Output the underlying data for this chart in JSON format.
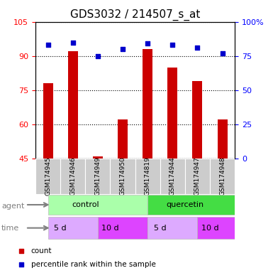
{
  "title": "GDS3032 / 214507_s_at",
  "samples": [
    "GSM174945",
    "GSM174946",
    "GSM174949",
    "GSM174950",
    "GSM174819",
    "GSM174944",
    "GSM174947",
    "GSM174948"
  ],
  "count_values": [
    78,
    92,
    46,
    62,
    93,
    85,
    79,
    62
  ],
  "percentile_values": [
    83,
    85,
    75,
    80,
    84,
    83,
    81,
    77
  ],
  "ylim_left": [
    45,
    105
  ],
  "ylim_right": [
    0,
    100
  ],
  "yticks_left": [
    45,
    60,
    75,
    90,
    105
  ],
  "yticks_right": [
    0,
    25,
    50,
    75,
    100
  ],
  "bar_color": "#cc0000",
  "dot_color": "#0000cc",
  "bar_width": 0.4,
  "legend_count_label": "count",
  "legend_pct_label": "percentile rank within the sample",
  "title_fontsize": 11,
  "tick_fontsize": 8,
  "label_fontsize": 8
}
